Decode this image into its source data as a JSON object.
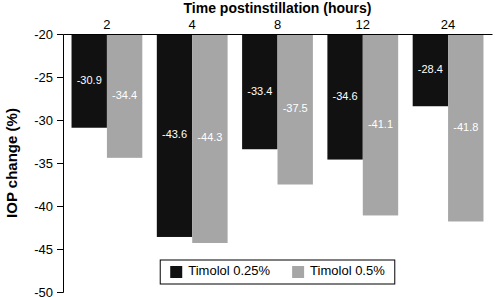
{
  "chart_data": {
    "type": "bar",
    "x_label": "Time postinstillation (hours)",
    "y_label": "IOP change (%)",
    "categories": [
      "2",
      "4",
      "8",
      "12",
      "24"
    ],
    "series": [
      {
        "name": "Timolol 0.25%",
        "color": "#111111",
        "values": [
          -30.9,
          -43.6,
          -33.4,
          -34.6,
          -28.4
        ]
      },
      {
        "name": "Timolol 0.5%",
        "color": "#a6a6a6",
        "values": [
          -34.4,
          -44.3,
          -37.5,
          -41.1,
          -41.8
        ]
      }
    ],
    "ylim": [
      -20,
      -50
    ],
    "yticks": [
      -20,
      -25,
      -30,
      -35,
      -40,
      -45,
      -50
    ],
    "data_labels": true,
    "legend": "bottom",
    "grid": false
  }
}
